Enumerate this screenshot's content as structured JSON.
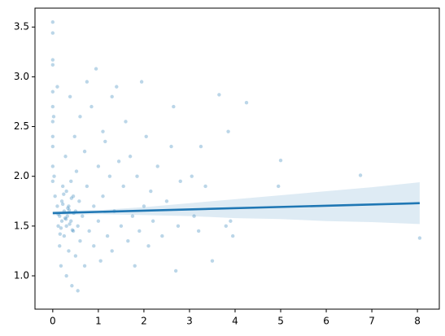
{
  "chart_data": {
    "type": "scatter",
    "xlim": [
      -0.39,
      8.48
    ],
    "ylim": [
      0.665,
      3.69
    ],
    "xticks": [
      0,
      1,
      2,
      3,
      4,
      5,
      6,
      7,
      8
    ],
    "yticks": [
      {
        "value": 1,
        "label": "1.0"
      },
      1.5,
      {
        "value": 2,
        "label": "2.0"
      },
      2.5,
      {
        "value": 3,
        "label": "3.0"
      },
      3.5
    ],
    "points": {
      "color": "#1f77b4",
      "x": [
        0,
        0,
        0,
        0,
        0,
        0,
        0,
        0,
        0,
        0,
        0,
        0.02,
        0.03,
        0.05,
        0.1,
        0.1,
        0.12,
        0.15,
        0.15,
        0.18,
        0.2,
        0.2,
        0.22,
        0.25,
        0.25,
        0.28,
        0.3,
        0.3,
        0.3,
        0.32,
        0.35,
        0.35,
        0.38,
        0.4,
        0.4,
        0.42,
        0.45,
        0.45,
        0.48,
        0.5,
        0.5,
        0.52,
        0.55,
        0.55,
        0.58,
        0.6,
        0.6,
        0.65,
        0.7,
        0.7,
        0.75,
        0.75,
        0.8,
        0.85,
        0.9,
        0.9,
        0.95,
        1.0,
        1.0,
        1.05,
        1.1,
        1.1,
        1.15,
        1.2,
        1.25,
        1.3,
        1.3,
        1.35,
        1.4,
        1.45,
        1.5,
        1.55,
        1.6,
        1.65,
        1.7,
        1.75,
        1.8,
        1.85,
        1.9,
        1.95,
        2.0,
        2.05,
        2.1,
        2.15,
        2.2,
        2.3,
        2.4,
        2.5,
        2.6,
        2.65,
        2.7,
        2.75,
        2.8,
        3.05,
        3.1,
        3.2,
        3.25,
        3.35,
        3.5,
        3.65,
        3.8,
        3.85,
        3.9,
        3.95,
        4.25,
        4.95,
        5.0,
        6.75,
        8.05,
        0.12,
        0.18,
        0.22,
        0.27,
        0.33,
        0.37,
        0.41,
        0.46,
        0.16,
        0.24,
        0.29,
        0.36,
        0.43
      ],
      "y": [
        3.55,
        3.44,
        3.17,
        3.12,
        2.85,
        2.7,
        2.55,
        2.4,
        2.3,
        2.1,
        1.95,
        2.6,
        2.0,
        1.8,
        2.9,
        1.7,
        1.5,
        1.6,
        1.3,
        1.1,
        1.75,
        1.55,
        1.9,
        1.4,
        1.65,
        2.2,
        1.0,
        1.85,
        1.5,
        1.6,
        1.7,
        1.25,
        2.8,
        1.55,
        1.95,
        0.9,
        1.45,
        1.8,
        2.4,
        1.65,
        1.2,
        2.05,
        1.5,
        0.85,
        1.75,
        1.35,
        2.6,
        1.6,
        2.25,
        1.1,
        1.9,
        2.95,
        1.45,
        2.7,
        1.7,
        1.3,
        3.08,
        2.1,
        1.55,
        1.15,
        2.45,
        1.8,
        2.35,
        1.4,
        2.0,
        2.8,
        1.25,
        1.65,
        2.9,
        2.15,
        1.5,
        1.9,
        2.55,
        1.35,
        2.2,
        1.6,
        1.1,
        2.0,
        1.45,
        2.95,
        1.7,
        2.4,
        1.3,
        1.85,
        1.55,
        2.1,
        1.4,
        1.75,
        2.3,
        2.7,
        1.05,
        1.5,
        1.95,
        2.0,
        1.6,
        1.45,
        2.3,
        1.9,
        1.15,
        2.82,
        1.5,
        2.45,
        1.55,
        1.4,
        2.74,
        1.9,
        2.16,
        2.01,
        1.38,
        1.62,
        1.48,
        1.72,
        1.58,
        1.68,
        1.52,
        1.78,
        1.63,
        1.42,
        1.82,
        1.57,
        1.66,
        1.46
      ]
    },
    "fit": {
      "color": "#1f77b4",
      "x": [
        0,
        8.05
      ],
      "y": [
        1.63,
        1.73
      ]
    },
    "band": {
      "color": "#1f77b4",
      "x": [
        0,
        1,
        2,
        3,
        4,
        5,
        6,
        7,
        8.05
      ],
      "lower": [
        1.61,
        1.62,
        1.61,
        1.6,
        1.58,
        1.57,
        1.55,
        1.54,
        1.52
      ],
      "upper": [
        1.65,
        1.66,
        1.69,
        1.73,
        1.77,
        1.81,
        1.85,
        1.89,
        1.94
      ]
    }
  }
}
